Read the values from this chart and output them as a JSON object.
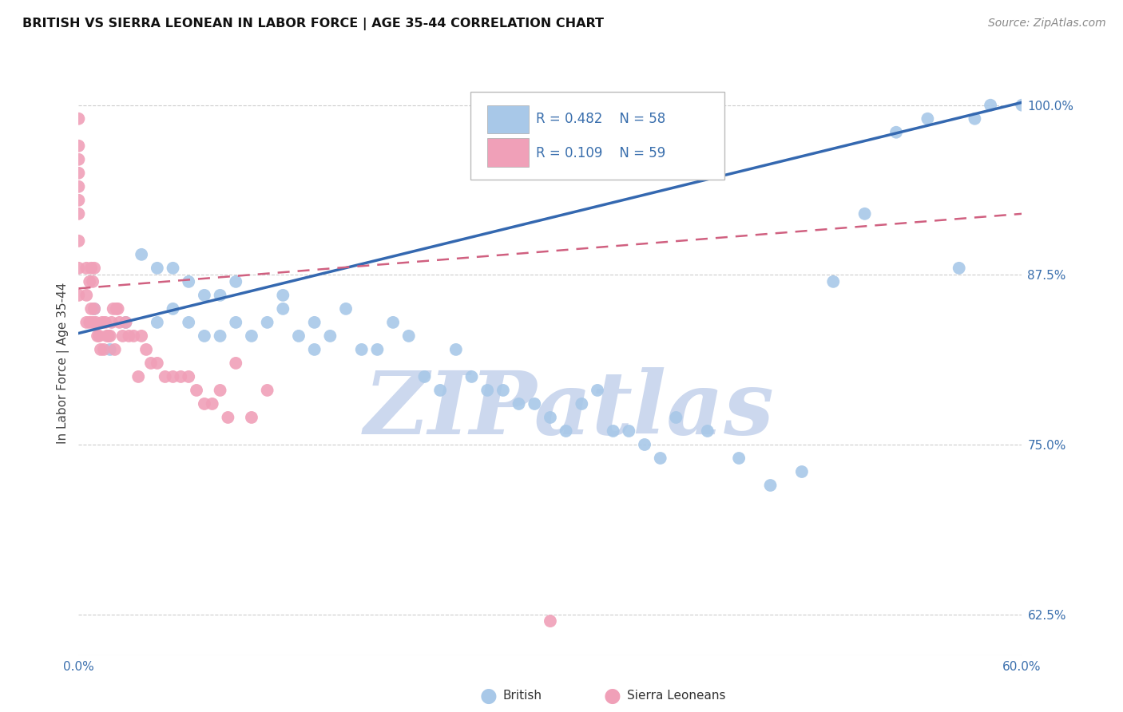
{
  "title": "BRITISH VS SIERRA LEONEAN IN LABOR FORCE | AGE 35-44 CORRELATION CHART",
  "source": "Source: ZipAtlas.com",
  "ylabel": "In Labor Force | Age 35-44",
  "xlim": [
    0.0,
    0.6
  ],
  "ylim": [
    0.595,
    1.025
  ],
  "yticks": [
    0.625,
    0.75,
    0.875,
    1.0
  ],
  "ytick_labels": [
    "62.5%",
    "75.0%",
    "87.5%",
    "100.0%"
  ],
  "xticks": [
    0.0,
    0.1,
    0.2,
    0.3,
    0.4,
    0.5,
    0.6
  ],
  "xtick_labels": [
    "0.0%",
    "",
    "",
    "",
    "",
    "",
    "60.0%"
  ],
  "british_R": 0.482,
  "british_N": 58,
  "sierra_R": 0.109,
  "sierra_N": 59,
  "british_color": "#a8c8e8",
  "british_line_color": "#3468b0",
  "sierra_color": "#f0a0b8",
  "sierra_line_color": "#d06080",
  "watermark_color": "#ccd8ee",
  "british_x": [
    0.01,
    0.02,
    0.03,
    0.04,
    0.05,
    0.05,
    0.06,
    0.06,
    0.07,
    0.07,
    0.08,
    0.08,
    0.09,
    0.09,
    0.1,
    0.1,
    0.11,
    0.12,
    0.13,
    0.13,
    0.14,
    0.15,
    0.15,
    0.16,
    0.17,
    0.18,
    0.19,
    0.2,
    0.21,
    0.22,
    0.23,
    0.24,
    0.25,
    0.26,
    0.27,
    0.28,
    0.29,
    0.3,
    0.31,
    0.32,
    0.33,
    0.34,
    0.35,
    0.36,
    0.37,
    0.38,
    0.4,
    0.42,
    0.44,
    0.46,
    0.48,
    0.5,
    0.52,
    0.54,
    0.56,
    0.57,
    0.58,
    0.6
  ],
  "british_y": [
    0.85,
    0.82,
    0.84,
    0.89,
    0.84,
    0.88,
    0.85,
    0.88,
    0.84,
    0.87,
    0.83,
    0.86,
    0.83,
    0.86,
    0.84,
    0.87,
    0.83,
    0.84,
    0.85,
    0.86,
    0.83,
    0.82,
    0.84,
    0.83,
    0.85,
    0.82,
    0.82,
    0.84,
    0.83,
    0.8,
    0.79,
    0.82,
    0.8,
    0.79,
    0.79,
    0.78,
    0.78,
    0.77,
    0.76,
    0.78,
    0.79,
    0.76,
    0.76,
    0.75,
    0.74,
    0.77,
    0.76,
    0.74,
    0.72,
    0.73,
    0.87,
    0.92,
    0.98,
    0.99,
    0.88,
    0.99,
    1.0,
    1.0
  ],
  "sierra_x": [
    0.0,
    0.0,
    0.0,
    0.0,
    0.0,
    0.0,
    0.0,
    0.0,
    0.0,
    0.0,
    0.005,
    0.005,
    0.005,
    0.007,
    0.007,
    0.008,
    0.008,
    0.009,
    0.009,
    0.01,
    0.01,
    0.011,
    0.012,
    0.013,
    0.014,
    0.015,
    0.016,
    0.017,
    0.018,
    0.019,
    0.02,
    0.021,
    0.022,
    0.023,
    0.024,
    0.025,
    0.026,
    0.028,
    0.03,
    0.032,
    0.035,
    0.038,
    0.04,
    0.043,
    0.046,
    0.05,
    0.055,
    0.06,
    0.065,
    0.07,
    0.075,
    0.08,
    0.085,
    0.09,
    0.095,
    0.1,
    0.11,
    0.12,
    0.3
  ],
  "sierra_y": [
    0.86,
    0.88,
    0.9,
    0.92,
    0.93,
    0.94,
    0.95,
    0.96,
    0.97,
    0.99,
    0.84,
    0.86,
    0.88,
    0.84,
    0.87,
    0.85,
    0.88,
    0.84,
    0.87,
    0.85,
    0.88,
    0.84,
    0.83,
    0.83,
    0.82,
    0.84,
    0.82,
    0.84,
    0.83,
    0.83,
    0.83,
    0.84,
    0.85,
    0.82,
    0.85,
    0.85,
    0.84,
    0.83,
    0.84,
    0.83,
    0.83,
    0.8,
    0.83,
    0.82,
    0.81,
    0.81,
    0.8,
    0.8,
    0.8,
    0.8,
    0.79,
    0.78,
    0.78,
    0.79,
    0.77,
    0.81,
    0.77,
    0.79,
    0.62
  ]
}
